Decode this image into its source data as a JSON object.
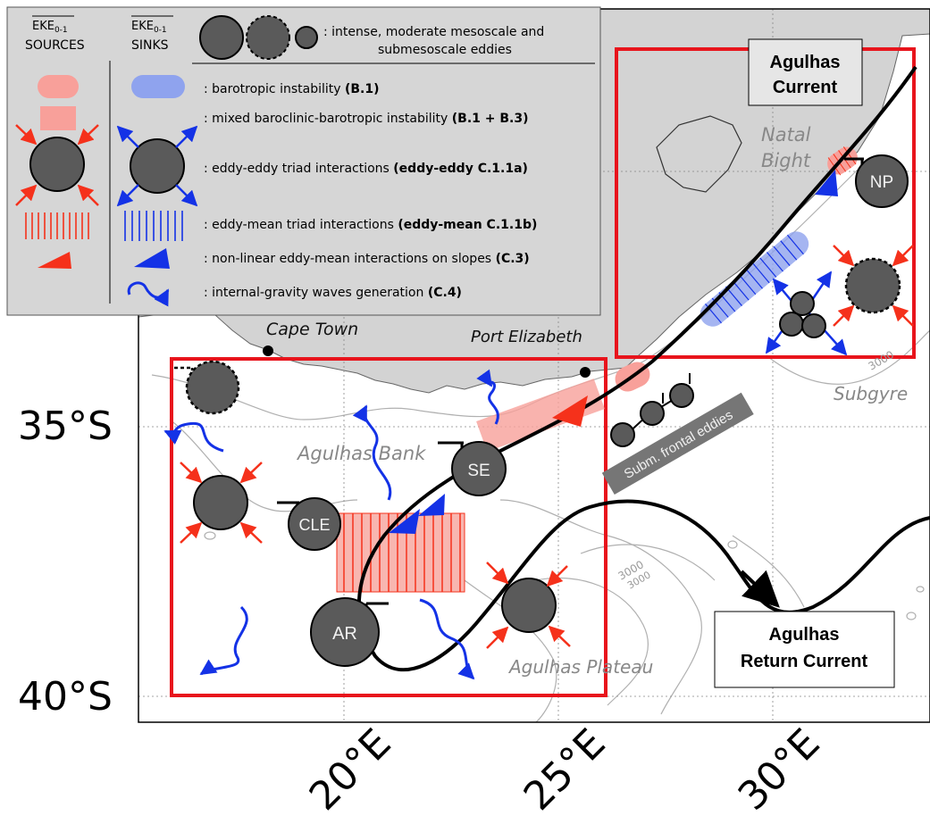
{
  "map": {
    "lat_labels": [
      "35°S",
      "40°S"
    ],
    "lon_labels": [
      "20°E",
      "25°E",
      "30°E"
    ],
    "places": {
      "cape_town": "Cape Town",
      "port_elizabeth": "Port Elizabeth",
      "agulhas_bank": "Agulhas Bank",
      "agulhas_plateau": "Agulhas Plateau",
      "natal_bight": [
        "Natal",
        "Bight"
      ],
      "subgyre": "Subgyre"
    },
    "contour_labels": [
      "3000",
      "3000",
      "3000"
    ],
    "currents": {
      "agulhas_current": [
        "Agulhas",
        "Current"
      ],
      "agulhas_return_current": [
        "Agulhas",
        "Return Current"
      ]
    },
    "eddies": {
      "np": "NP",
      "se": "SE",
      "cle": "CLE",
      "ar": "AR"
    },
    "frontal_eddies_label": "Subm. frontal eddies"
  },
  "legend": {
    "sources_header": [
      "EKE",
      "0-1",
      "SOURCES"
    ],
    "sinks_header": [
      "EKE",
      "0-1",
      "SINKS"
    ],
    "eddy_types": [
      ": intense, moderate mesoscale and",
      "submesoscale eddies"
    ],
    "rows": [
      {
        "text": ": barotropic instability ",
        "bold": "(B.1)"
      },
      {
        "text": ": mixed baroclinic-barotropic instability ",
        "bold": "(B.1 + B.3)"
      },
      {
        "text": ": eddy-eddy triad interactions ",
        "bold": "(eddy-eddy C.1.1a)"
      },
      {
        "text": ": eddy-mean triad interactions ",
        "bold": "(eddy-mean C.1.1b)"
      },
      {
        "text": ": non-linear eddy-mean interactions on slopes ",
        "bold": "(C.3)"
      },
      {
        "text": ": internal-gravity waves generation ",
        "bold": "(C.4)"
      }
    ]
  },
  "colors": {
    "source_red": "#f5311b",
    "source_pink": "#f8a09a",
    "sink_blue": "#1432e6",
    "sink_light_blue": "#8fa3ee",
    "eddy_grey": "#5a5a5a",
    "box_red": "#e8141c",
    "land": "#d3d3d3",
    "legend_bg": "#d6d6d6"
  }
}
